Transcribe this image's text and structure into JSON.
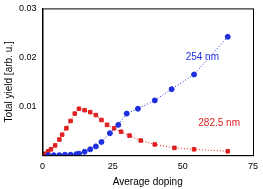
{
  "chart_data": {
    "type": "line",
    "x_label": "Average doping",
    "y_label": "Total yield [arb. u.]",
    "xlim": [
      0,
      75
    ],
    "xticks": [
      0,
      25,
      50,
      75
    ],
    "ylim": [
      0,
      0.03
    ],
    "yticks": [
      0.01,
      0.02,
      0.03
    ],
    "grid": false,
    "series": [
      {
        "name": "254 nm",
        "color": "#1f2fe0",
        "marker": "circle",
        "line_style": "dotted",
        "x": [
          2,
          4,
          6,
          8,
          10,
          12,
          13,
          15,
          17,
          19,
          21,
          24,
          27,
          30,
          34,
          40,
          46,
          54,
          66
        ],
        "values": [
          0,
          0,
          0,
          0.0001,
          0.0001,
          0.0002,
          0.0003,
          0.0007,
          0.0012,
          0.0018,
          0.0027,
          0.0045,
          0.0062,
          0.0085,
          0.0095,
          0.0112,
          0.0135,
          0.0165,
          0.0242
        ]
      },
      {
        "name": "282.5 nm",
        "color": "#e02020",
        "marker": "square",
        "line_style": "dotted",
        "x": [
          0,
          1,
          2,
          3,
          4.5,
          6,
          7,
          8.5,
          10,
          11.5,
          13,
          15,
          17,
          19,
          21,
          23,
          25.5,
          28,
          31,
          35,
          40,
          47,
          54,
          66
        ],
        "values": [
          0,
          0.0003,
          0.0008,
          0.0012,
          0.002,
          0.0032,
          0.0042,
          0.0055,
          0.007,
          0.0085,
          0.0095,
          0.0092,
          0.0088,
          0.0082,
          0.0072,
          0.0062,
          0.0055,
          0.0048,
          0.004,
          0.003,
          0.0022,
          0.0015,
          0.0012,
          0.0008
        ]
      }
    ]
  }
}
